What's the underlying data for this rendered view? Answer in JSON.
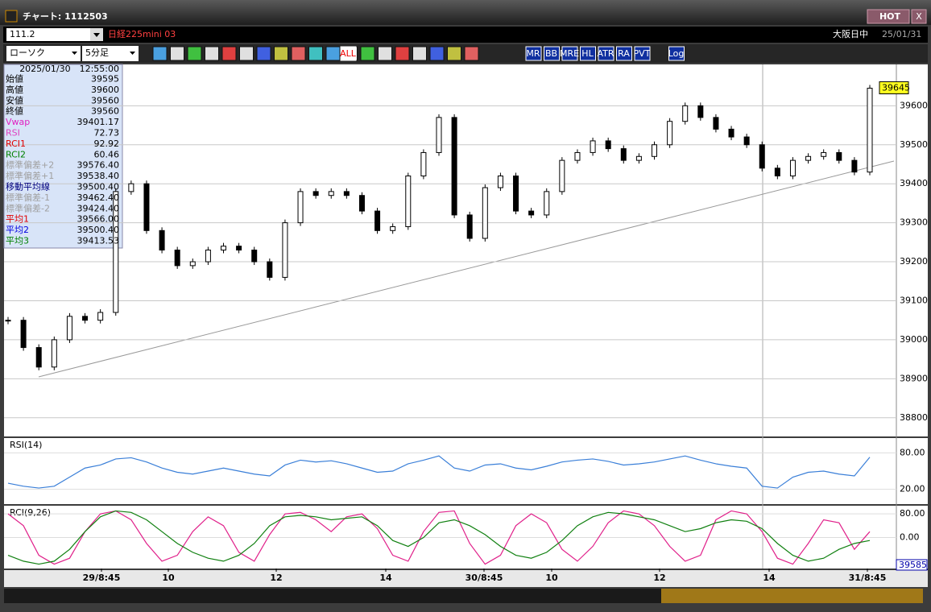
{
  "window": {
    "title": "チャート: 1112503",
    "hot": "HOT",
    "close": "X"
  },
  "bar1": {
    "code": "111.2",
    "name": "日経225mini 03",
    "session": "大阪日中",
    "date": "25/01/31"
  },
  "bar2": {
    "chart_kind": "ローソク",
    "interval": "5分足",
    "tools": [
      "ALL",
      "MR",
      "BB",
      "MRE",
      "HL",
      "ATR",
      "RA",
      "PVT",
      "Log"
    ]
  },
  "info": {
    "time": "2025/01/30　12:55:00",
    "rows": [
      {
        "label": "始値",
        "value": "39595",
        "color": "#000000"
      },
      {
        "label": "高値",
        "value": "39600",
        "color": "#000000"
      },
      {
        "label": "安値",
        "value": "39560",
        "color": "#000000"
      },
      {
        "label": "終値",
        "value": "39560",
        "color": "#000000"
      },
      {
        "label": "Vwap",
        "value": "39401.17",
        "color": "#e020c0"
      },
      {
        "label": "RSI",
        "value": "72.73",
        "color": "#e040c0"
      },
      {
        "label": "RCI1",
        "value": "92.92",
        "color": "#e00000"
      },
      {
        "label": "RCI2",
        "value": "60.46",
        "color": "#008000"
      },
      {
        "label": "標準偏差+2",
        "value": "39576.40",
        "color": "#a0a0a0"
      },
      {
        "label": "標準偏差+1",
        "value": "39538.40",
        "color": "#a0a0a0"
      },
      {
        "label": "移動平均線",
        "value": "39500.40",
        "color": "#000080"
      },
      {
        "label": "標準偏差-1",
        "value": "39462.40",
        "color": "#a0a0a0"
      },
      {
        "label": "標準偏差-2",
        "value": "39424.40",
        "color": "#a0a0a0"
      },
      {
        "label": "平均1",
        "value": "39566.00",
        "color": "#e00000"
      },
      {
        "label": "平均2",
        "value": "39500.40",
        "color": "#0000e0"
      },
      {
        "label": "平均3",
        "value": "39413.53",
        "color": "#008000"
      }
    ]
  },
  "chart_data": {
    "type": "candlestick",
    "categories": [
      null,
      "29/8:45",
      "10",
      "12",
      "14",
      "30/8:45",
      "10",
      "12",
      "14",
      "31/8:45"
    ],
    "closes": [
      39050,
      38980,
      38930,
      39000,
      39060,
      39050,
      39070,
      39380,
      39400,
      39280,
      39230,
      39190,
      39200,
      39230,
      39240,
      39230,
      39200,
      39160,
      39300,
      39380,
      39370,
      39380,
      39370,
      39330,
      39280,
      39290,
      39420,
      39480,
      39570,
      39320,
      39260,
      39390,
      39420,
      39330,
      39320,
      39380,
      39460,
      39480,
      39510,
      39490,
      39460,
      39470,
      39500,
      39560,
      39600,
      39570,
      39540,
      39520,
      39500,
      39440,
      39420,
      39460,
      39470,
      39480,
      39460,
      39430,
      39645
    ],
    "last_price": 39645,
    "last_label": "39645",
    "ylim": [
      38752,
      39706
    ],
    "yticks": [
      38800,
      38900,
      39000,
      39100,
      39200,
      39300,
      39400,
      39500,
      39600
    ],
    "rsi": {
      "title": "RSI(14)",
      "color": "#3a7fd8",
      "ylim": [
        -4.5,
        104.5
      ],
      "yticks": [
        {
          "value": 80,
          "label": "80.00"
        },
        {
          "value": 20,
          "label": "20.00"
        }
      ],
      "values": [
        30,
        25,
        22,
        25,
        40,
        55,
        60,
        70,
        72,
        65,
        55,
        48,
        45,
        50,
        55,
        50,
        45,
        42,
        60,
        68,
        65,
        67,
        62,
        55,
        48,
        50,
        62,
        68,
        75,
        55,
        50,
        60,
        62,
        55,
        52,
        58,
        65,
        68,
        70,
        66,
        60,
        62,
        65,
        70,
        75,
        68,
        62,
        58,
        55,
        25,
        22,
        40,
        48,
        50,
        45,
        42,
        73
      ]
    },
    "rci": {
      "title": "RCI(9,26)",
      "ylim": [
        -104.8,
        107.6
      ],
      "yticks": [
        {
          "value": 80,
          "label": "80.00"
        },
        {
          "value": 0,
          "label": "0.00"
        }
      ],
      "cursor_label": "39585",
      "series": [
        {
          "color": "#e0208a",
          "values": [
            80,
            40,
            -60,
            -90,
            -70,
            20,
            80,
            90,
            60,
            -20,
            -80,
            -60,
            20,
            70,
            40,
            -50,
            -80,
            10,
            80,
            85,
            60,
            20,
            70,
            80,
            30,
            -60,
            -80,
            20,
            85,
            90,
            -20,
            -90,
            -60,
            40,
            80,
            50,
            -40,
            -80,
            -30,
            50,
            90,
            80,
            40,
            -30,
            -80,
            -60,
            60,
            90,
            80,
            20,
            -70,
            -90,
            -20,
            60,
            50,
            -40,
            20
          ]
        },
        {
          "color": "#108010",
          "values": [
            -60,
            -80,
            -90,
            -80,
            -40,
            20,
            70,
            90,
            85,
            60,
            20,
            -20,
            -50,
            -70,
            -80,
            -60,
            -20,
            40,
            70,
            75,
            70,
            60,
            65,
            70,
            40,
            -10,
            -30,
            0,
            50,
            60,
            40,
            10,
            -30,
            -60,
            -70,
            -50,
            -10,
            40,
            70,
            85,
            80,
            70,
            60,
            40,
            20,
            30,
            50,
            60,
            55,
            30,
            -20,
            -60,
            -80,
            -70,
            -40,
            -20,
            -10
          ]
        }
      ]
    }
  }
}
